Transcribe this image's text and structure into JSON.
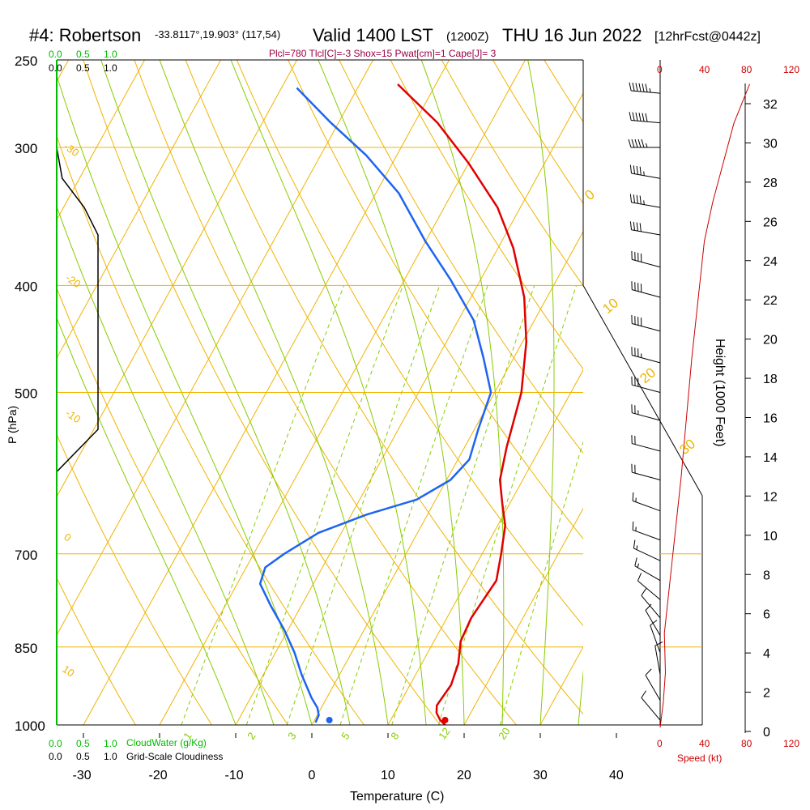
{
  "header": {
    "station": "#4: Robertson",
    "coords": "-33.8117°,19.903° (117,54)",
    "valid": "Valid 1400 LST",
    "utc": "(1200Z)",
    "date": "THU 16 Jun 2022",
    "forecast": "[12hrFcst@0442z]",
    "indices": "Plcl=780 Tlcl[C]=-3 Shox=15 Pwat[cm]=1 Cape[J]= 3"
  },
  "colors": {
    "isotherm": "#f0b400",
    "adiabat": "#88cc00",
    "mixing": "#88cc00",
    "temperature": "#e00000",
    "dewpoint": "#1e64f0",
    "cloud": "#00bb00",
    "speed": "#cc0000",
    "indices": "#990044"
  },
  "chart_data": {
    "type": "line",
    "title": "Skew-T sounding",
    "xlabel": "Temperature (C)",
    "ylabel": "P (hPa)",
    "x_ticks": [
      "-30",
      "-20",
      "-10",
      "0",
      "10",
      "20",
      "30",
      "40"
    ],
    "pressure_levels": [
      "250",
      "300",
      "400",
      "500",
      "700",
      "850",
      "1000"
    ],
    "temp_range": [
      -33,
      36
    ],
    "pressure_range": [
      1000,
      250
    ],
    "isotherm_labels": [
      "-30",
      "-20",
      "-10",
      "0",
      "10",
      "20",
      "30",
      "10"
    ],
    "adiabat_labels": [
      "0",
      "10",
      "20",
      "30"
    ],
    "mixing_ratio_labels": [
      "1",
      "2",
      "3",
      "5",
      "8",
      "12",
      "20"
    ],
    "series": [
      {
        "name": "Temperature",
        "points": [
          [
            17.5,
            1000
          ],
          [
            16.5,
            990
          ],
          [
            15.5,
            975
          ],
          [
            15.0,
            960
          ],
          [
            15.4,
            920
          ],
          [
            14.8,
            880
          ],
          [
            13.5,
            840
          ],
          [
            13.2,
            800
          ],
          [
            13.5,
            770
          ],
          [
            13.8,
            740
          ],
          [
            12.5,
            700
          ],
          [
            11.0,
            660
          ],
          [
            9.0,
            630
          ],
          [
            7.0,
            600
          ],
          [
            5.5,
            560
          ],
          [
            3.5,
            500
          ],
          [
            0.5,
            450
          ],
          [
            -3.0,
            410
          ],
          [
            -8.0,
            370
          ],
          [
            -13.0,
            340
          ],
          [
            -20.0,
            310
          ],
          [
            -27.0,
            285
          ],
          [
            -35.0,
            263
          ]
        ]
      },
      {
        "name": "Dewpoint",
        "points": [
          [
            0.3,
            995
          ],
          [
            0.2,
            980
          ],
          [
            -0.5,
            965
          ],
          [
            -2.0,
            945
          ],
          [
            -5.0,
            900
          ],
          [
            -7.5,
            860
          ],
          [
            -10.5,
            820
          ],
          [
            -14.0,
            780
          ],
          [
            -17.0,
            745
          ],
          [
            -17.5,
            720
          ],
          [
            -16.0,
            700
          ],
          [
            -13.0,
            670
          ],
          [
            -8.0,
            645
          ],
          [
            -2.5,
            625
          ],
          [
            0.5,
            600
          ],
          [
            1.5,
            575
          ],
          [
            0.5,
            540
          ],
          [
            -0.5,
            500
          ],
          [
            -4.0,
            465
          ],
          [
            -8.0,
            430
          ],
          [
            -14.0,
            395
          ],
          [
            -20.0,
            365
          ],
          [
            -27.0,
            330
          ],
          [
            -34.0,
            305
          ],
          [
            -41.0,
            285
          ],
          [
            -48.0,
            265
          ]
        ]
      }
    ],
    "surface_temperature": 17.5,
    "surface_dewpoint": 2.3,
    "cloud_axis_top": [
      "0.0",
      "0.5",
      "1.0"
    ],
    "cloudiness_axis_top": [
      "0.0",
      "0.5",
      "1.0"
    ],
    "cloud_axis_bottom": [
      "0.0",
      "0.5",
      "1.0"
    ],
    "cloudiness_axis_bottom": [
      "0.0",
      "0.5",
      "1.0"
    ],
    "cloudwater_label": "CloudWater (g/Kg)",
    "cloudiness_label": "Grid-Scale Cloudiness",
    "cloudiness_profile": [
      [
        0,
        300
      ],
      [
        0.1,
        320
      ],
      [
        0.5,
        340
      ],
      [
        0.75,
        360
      ],
      [
        0.75,
        540
      ],
      [
        0,
        590
      ]
    ],
    "speed_ticks": [
      "0",
      "40",
      "80",
      "120"
    ],
    "speed_label": "Speed (kt)",
    "height_ticks": [
      "0",
      "2",
      "4",
      "6",
      "8",
      "10",
      "12",
      "14",
      "16",
      "18",
      "20",
      "22",
      "24",
      "26",
      "28",
      "30",
      "32"
    ],
    "height_label": "Height (1000 Feet)",
    "wind_speed_profile": [
      [
        0,
        0.2
      ],
      [
        3,
        1.5
      ],
      [
        5,
        3
      ],
      [
        4,
        5
      ],
      [
        8,
        7
      ],
      [
        12,
        9
      ],
      [
        16,
        11
      ],
      [
        20,
        13
      ],
      [
        25,
        16
      ],
      [
        30,
        19
      ],
      [
        36,
        22
      ],
      [
        42,
        25
      ],
      [
        50,
        27
      ],
      [
        60,
        29
      ],
      [
        70,
        31
      ],
      [
        85,
        33
      ]
    ],
    "wind_barbs": [
      {
        "p": 268,
        "dir": 275,
        "spd": 65
      },
      {
        "p": 285,
        "dir": 275,
        "spd": 60
      },
      {
        "p": 300,
        "dir": 270,
        "spd": 55
      },
      {
        "p": 320,
        "dir": 280,
        "spd": 45
      },
      {
        "p": 340,
        "dir": 280,
        "spd": 45
      },
      {
        "p": 360,
        "dir": 280,
        "spd": 40
      },
      {
        "p": 385,
        "dir": 285,
        "spd": 40
      },
      {
        "p": 410,
        "dir": 285,
        "spd": 40
      },
      {
        "p": 440,
        "dir": 285,
        "spd": 40
      },
      {
        "p": 470,
        "dir": 285,
        "spd": 35
      },
      {
        "p": 500,
        "dir": 285,
        "spd": 30
      },
      {
        "p": 530,
        "dir": 285,
        "spd": 25
      },
      {
        "p": 565,
        "dir": 285,
        "spd": 20
      },
      {
        "p": 600,
        "dir": 285,
        "spd": 20
      },
      {
        "p": 640,
        "dir": 290,
        "spd": 15
      },
      {
        "p": 680,
        "dir": 290,
        "spd": 15
      },
      {
        "p": 710,
        "dir": 295,
        "spd": 15
      },
      {
        "p": 740,
        "dir": 300,
        "spd": 15
      },
      {
        "p": 770,
        "dir": 310,
        "spd": 10
      },
      {
        "p": 800,
        "dir": 320,
        "spd": 10
      },
      {
        "p": 830,
        "dir": 330,
        "spd": 10
      },
      {
        "p": 860,
        "dir": 340,
        "spd": 10
      },
      {
        "p": 900,
        "dir": 350,
        "spd": 10
      },
      {
        "p": 950,
        "dir": 330,
        "spd": 10
      },
      {
        "p": 990,
        "dir": 320,
        "spd": 10
      }
    ]
  }
}
